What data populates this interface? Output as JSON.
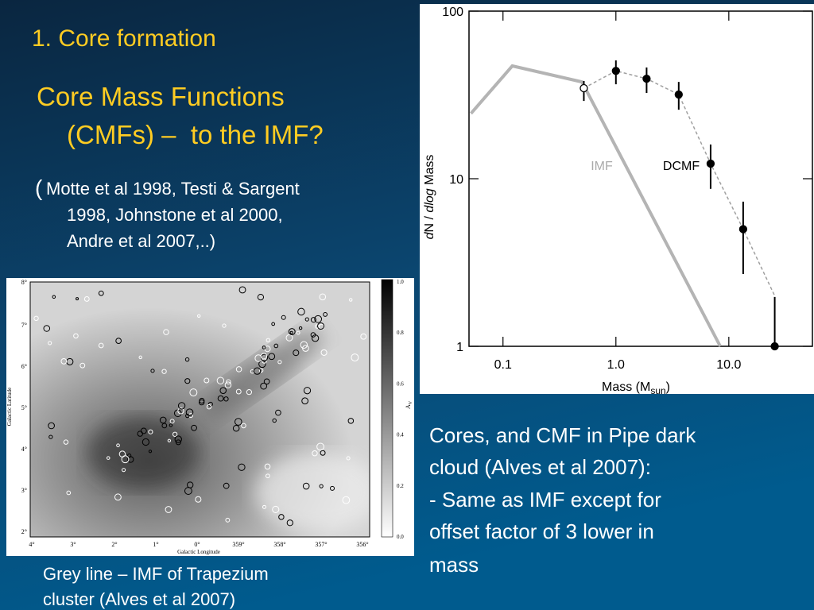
{
  "slide": {
    "title": "1. Core formation",
    "heading": [
      "Core Mass Functions",
      "(CMFs) –  to the IMF?"
    ],
    "refs_paren": "(",
    "refs": [
      "Motte et al 1998, Testi & Sargent",
      "1998, Johnstone et al 2000,",
      "Andre et al 2007,..)"
    ],
    "notes": [
      "Cores, and CMF in Pipe dark",
      "cloud (Alves et al 2007):",
      "- Same as IMF except for",
      "offset factor of 3 lower in",
      "mass"
    ],
    "caption": [
      "Grey line – IMF of Trapezium",
      "cluster (Alves et al 2007)"
    ]
  },
  "map": {
    "ylabel": "Galactic Latitude",
    "xlabel": "Galactic Longitude",
    "y_ticks": [
      "8°",
      "7°",
      "6°",
      "5°",
      "4°",
      "3°",
      "2°"
    ],
    "x_ticks": [
      "4°",
      "3°",
      "2°",
      "1°",
      "0°",
      "359°",
      "358°",
      "357°",
      "356°"
    ],
    "colorbar_ticks": [
      "1.0",
      "0.8",
      "0.6",
      "0.4",
      "0.2",
      "0.0"
    ],
    "colorbar_label": [
      "A",
      "V"
    ]
  },
  "chart_data": {
    "type": "line",
    "log_x": true,
    "log_y": true,
    "xlabel": [
      "Mass (M",
      "sun",
      ")"
    ],
    "ylabel": [
      "d",
      "N / ",
      "dlog",
      " Mass"
    ],
    "xlim": [
      0.05,
      55
    ],
    "ylim": [
      1,
      100
    ],
    "xticks": [
      0.1,
      {
        "value": 1,
        "label": "1.0"
      },
      {
        "value": 10,
        "label": "10.0"
      }
    ],
    "yticks": [
      1,
      10,
      100
    ],
    "series": [
      {
        "name": "IMF",
        "color": "#b4b4b4",
        "dashed": false,
        "x": [
          0.052,
          0.121,
          0.5,
          8.4
        ],
        "values": [
          24.5,
          47.1,
          37.8,
          1
        ]
      },
      {
        "name": "DCMF",
        "color": "#a0a0a0",
        "dashed": true,
        "x": [
          0.52,
          1.0,
          1.87,
          3.6,
          6.9,
          13.4,
          25.5
        ],
        "values": [
          34.7,
          44,
          39.5,
          31.8,
          12.3,
          5.0,
          2.0
        ]
      }
    ],
    "points": {
      "color": "#000000",
      "x": [
        0.52,
        1.0,
        1.87,
        3.6,
        6.9,
        13.4,
        25.5
      ],
      "values": [
        34.7,
        44,
        39.5,
        31.8,
        12.3,
        5.0,
        1
      ],
      "y_low": [
        29.1,
        36.6,
        32.5,
        25.8,
        8.7,
        2.7,
        1
      ],
      "y_high": [
        38.3,
        50.8,
        46.1,
        37.8,
        16.0,
        7.3,
        1.97
      ],
      "open": [
        true,
        false,
        false,
        false,
        false,
        false,
        false
      ]
    }
  }
}
